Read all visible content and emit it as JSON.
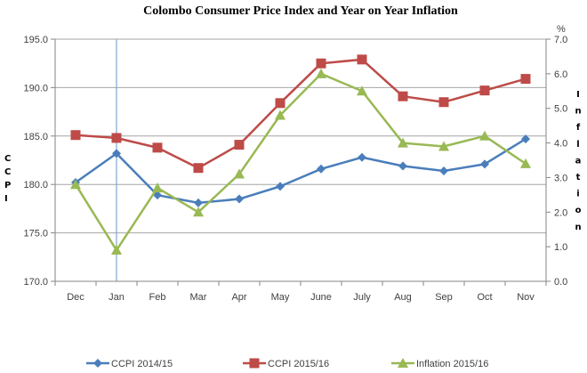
{
  "chart_data": {
    "type": "line",
    "title": "Colombo Consumer Price Index and Year on Year Inflation",
    "categories": [
      "Dec",
      "Jan",
      "Feb",
      "Mar",
      "Apr",
      "May",
      "June",
      "July",
      "Aug",
      "Sep",
      "Oct",
      "Nov"
    ],
    "ylabel_left": "CCPI",
    "ylabel_right": "Inflation",
    "y2_unit": "%",
    "ylim": [
      170,
      195
    ],
    "y2lim": [
      0,
      7
    ],
    "yticks": [
      "170.0",
      "175.0",
      "180.0",
      "185.0",
      "190.0",
      "195.0"
    ],
    "y2ticks": [
      "0.0",
      "1.0",
      "2.0",
      "3.0",
      "4.0",
      "5.0",
      "6.0",
      "7.0"
    ],
    "grid": true,
    "legend_position": "bottom",
    "highlight_category": "Jan",
    "series": [
      {
        "name": "CCPI 2014/15",
        "axis": "left",
        "marker": "diamond",
        "color": "#4a7ebb",
        "values": [
          180.2,
          183.2,
          178.9,
          178.1,
          178.5,
          179.8,
          181.6,
          182.8,
          181.9,
          181.4,
          182.1,
          184.7
        ]
      },
      {
        "name": "CCPI 2015/16",
        "axis": "left",
        "marker": "square",
        "color": "#be4b48",
        "values": [
          185.1,
          184.8,
          183.8,
          181.7,
          184.1,
          188.4,
          192.5,
          192.9,
          189.1,
          188.5,
          189.7,
          190.9
        ]
      },
      {
        "name": "Inflation 2015/16",
        "axis": "right",
        "marker": "triangle",
        "color": "#98b954",
        "values": [
          2.8,
          0.9,
          2.7,
          2.0,
          3.1,
          4.8,
          6.0,
          5.5,
          4.0,
          3.9,
          4.2,
          3.4
        ]
      }
    ]
  }
}
